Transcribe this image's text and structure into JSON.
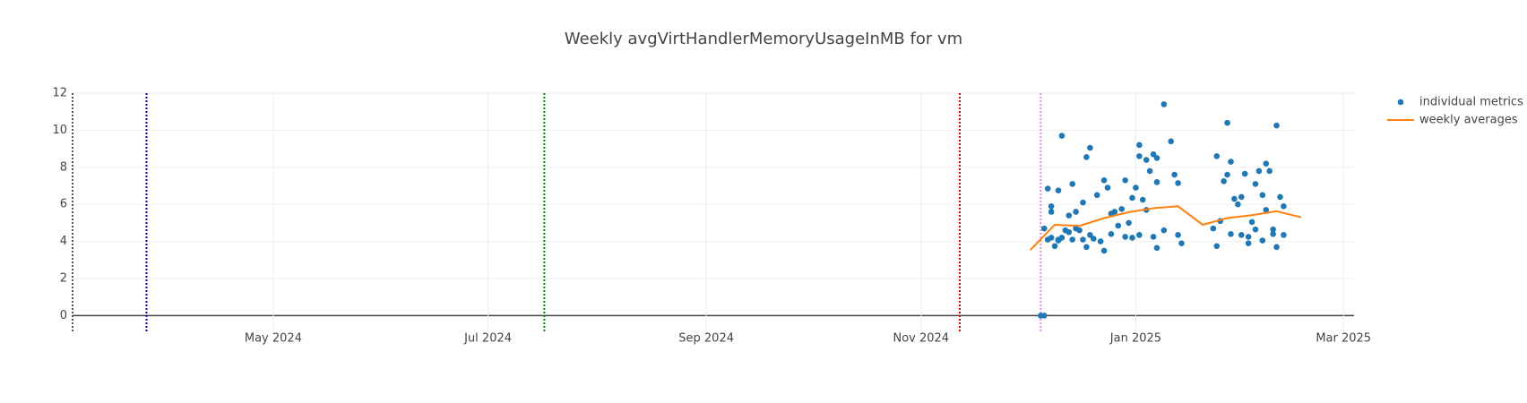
{
  "chart_data": {
    "type": "scatter",
    "title": "Weekly avgVirtHandlerMemoryUsageInMB for vm",
    "xlim": [
      "2024-03-05",
      "2025-03-04"
    ],
    "xticks": [
      {
        "value": "2024-05-01",
        "label": "May 2024"
      },
      {
        "value": "2024-07-01",
        "label": "Jul 2024"
      },
      {
        "value": "2024-09-01",
        "label": "Sep 2024"
      },
      {
        "value": "2024-11-01",
        "label": "Nov 2024"
      },
      {
        "value": "2025-01-01",
        "label": "Jan 2025"
      },
      {
        "value": "2025-03-01",
        "label": "Mar 2025"
      }
    ],
    "ylim": [
      -0.85,
      12
    ],
    "yticks": [
      0,
      2,
      4,
      6,
      8,
      10,
      12
    ],
    "grid": true,
    "legend": "right",
    "vlines": [
      {
        "x": "2024-03-05",
        "color": "#555555"
      },
      {
        "x": "2024-03-26",
        "color": "#0000cc"
      },
      {
        "x": "2024-07-17",
        "color": "#008000"
      },
      {
        "x": "2024-11-12",
        "color": "#dd0000"
      },
      {
        "x": "2024-12-05",
        "color": "#ee82ee"
      }
    ],
    "series": [
      {
        "name": "individual metrics",
        "type": "scatter",
        "color": "#1f77b4",
        "x": [
          "2024-12-05",
          "2024-12-06",
          "2024-12-06",
          "2024-12-07",
          "2024-12-08",
          "2024-12-08",
          "2024-12-07",
          "2024-12-08",
          "2024-12-09",
          "2024-12-10",
          "2024-12-10",
          "2024-12-10",
          "2024-12-11",
          "2024-12-11",
          "2024-12-12",
          "2024-12-13",
          "2024-12-13",
          "2024-12-14",
          "2024-12-14",
          "2024-12-15",
          "2024-12-15",
          "2024-12-16",
          "2024-12-17",
          "2024-12-17",
          "2024-12-18",
          "2024-12-19",
          "2024-12-18",
          "2024-12-19",
          "2024-12-20",
          "2024-12-21",
          "2024-12-23",
          "2024-12-24",
          "2024-12-22",
          "2024-12-23",
          "2024-12-25",
          "2024-12-25",
          "2024-12-26",
          "2024-12-27",
          "2024-12-28",
          "2024-12-29",
          "2024-12-30",
          "2024-12-31",
          "2024-12-31",
          "2025-01-01",
          "2025-01-02",
          "2025-01-02",
          "2025-01-03",
          "2025-01-04",
          "2025-01-04",
          "2025-01-05",
          "2025-01-06",
          "2025-01-07",
          "2025-01-07",
          "2025-01-09",
          "2025-01-09",
          "2025-01-11",
          "2025-01-12",
          "2025-01-13",
          "2025-01-13",
          "2025-01-14",
          "2025-01-07",
          "2025-01-06",
          "2025-01-02",
          "2024-12-29",
          "2025-01-23",
          "2025-01-24",
          "2025-01-24",
          "2025-01-25",
          "2025-01-26",
          "2025-01-27",
          "2025-01-27",
          "2025-01-28",
          "2025-01-28",
          "2025-01-29",
          "2025-01-30",
          "2025-01-31",
          "2025-01-31",
          "2025-02-01",
          "2025-02-02",
          "2025-02-02",
          "2025-02-03",
          "2025-02-04",
          "2025-02-04",
          "2025-02-05",
          "2025-02-06",
          "2025-02-06",
          "2025-02-07",
          "2025-02-07",
          "2025-02-08",
          "2025-02-09",
          "2025-02-09",
          "2025-02-10",
          "2025-02-10",
          "2025-02-11",
          "2025-02-12",
          "2025-02-12"
        ],
        "values": [
          0,
          0,
          4.7,
          6.85,
          5.9,
          5.6,
          4.1,
          4.2,
          3.75,
          4.1,
          4.05,
          6.75,
          9.7,
          4.2,
          4.6,
          4.5,
          5.4,
          7.1,
          4.1,
          5.6,
          4.7,
          4.6,
          6.1,
          4.1,
          8.55,
          9.05,
          3.7,
          4.35,
          4.15,
          6.5,
          7.3,
          6.9,
          4.0,
          3.5,
          5.5,
          4.4,
          5.6,
          4.85,
          5.75,
          7.3,
          5.0,
          4.2,
          6.35,
          6.9,
          9.2,
          8.6,
          6.25,
          8.4,
          5.7,
          7.8,
          8.7,
          7.2,
          8.5,
          11.4,
          4.6,
          9.4,
          7.6,
          7.15,
          4.35,
          3.9,
          3.65,
          4.25,
          4.35,
          4.25,
          4.7,
          8.6,
          3.75,
          5.1,
          7.25,
          7.6,
          10.4,
          8.3,
          4.4,
          6.3,
          6.0,
          6.4,
          4.35,
          7.65,
          4.25,
          3.9,
          5.05,
          7.1,
          4.65,
          7.8,
          4.05,
          6.5,
          5.7,
          8.2,
          7.8,
          4.65,
          4.4,
          10.25,
          3.7,
          6.4,
          5.9,
          4.35
        ]
      },
      {
        "name": "weekly averages",
        "type": "line",
        "color": "#ff7f0e",
        "x": [
          "2024-12-02",
          "2024-12-09",
          "2024-12-16",
          "2024-12-23",
          "2024-12-30",
          "2025-01-06",
          "2025-01-13",
          "2025-01-20",
          "2025-01-27",
          "2025-02-03",
          "2025-02-10",
          "2025-02-17"
        ],
        "values": [
          3.53,
          4.9,
          4.84,
          5.26,
          5.58,
          5.79,
          5.9,
          4.9,
          5.26,
          5.42,
          5.63,
          5.3
        ]
      }
    ]
  }
}
